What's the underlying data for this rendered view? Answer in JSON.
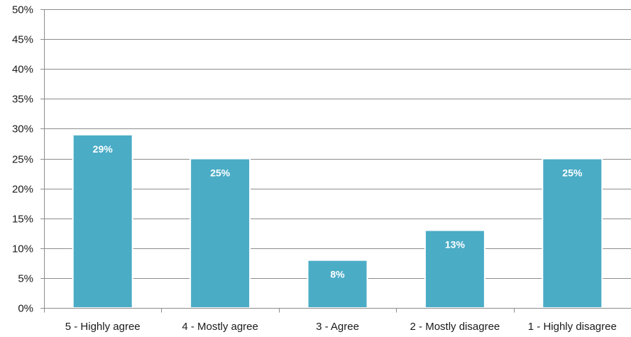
{
  "chart_data": {
    "type": "bar",
    "title": "",
    "xlabel": "",
    "ylabel": "",
    "categories": [
      "5 - Highly agree",
      "4 - Mostly agree",
      "3 - Agree",
      "2 - Mostly disagree",
      "1 - Highly disagree"
    ],
    "values": [
      29,
      25,
      8,
      13,
      25
    ],
    "value_labels": [
      "29%",
      "25%",
      "8%",
      "13%",
      "25%"
    ],
    "ylim": [
      0,
      50
    ],
    "yticks": [
      0,
      5,
      10,
      15,
      20,
      25,
      30,
      35,
      40,
      45,
      50
    ],
    "ytick_labels": [
      "0%",
      "5%",
      "10%",
      "15%",
      "20%",
      "25%",
      "30%",
      "35%",
      "40%",
      "45%",
      "50%"
    ],
    "grid": true,
    "colors": {
      "bar": "#4bacc6",
      "bar_edge": "#ffffff",
      "grid": "#8c8c8c",
      "axis": "#8c8c8c"
    }
  }
}
